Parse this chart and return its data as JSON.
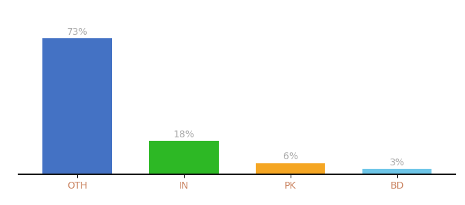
{
  "categories": [
    "OTH",
    "IN",
    "PK",
    "BD"
  ],
  "values": [
    73,
    18,
    6,
    3
  ],
  "labels": [
    "73%",
    "18%",
    "6%",
    "3%"
  ],
  "bar_colors": [
    "#4472c4",
    "#2db825",
    "#f5a623",
    "#6ec6e8"
  ],
  "ylim": [
    0,
    88
  ],
  "bar_width": 0.65,
  "background_color": "#ffffff",
  "label_fontsize": 10,
  "tick_fontsize": 10,
  "label_color": "#aaaaaa",
  "tick_color": "#cc8866"
}
